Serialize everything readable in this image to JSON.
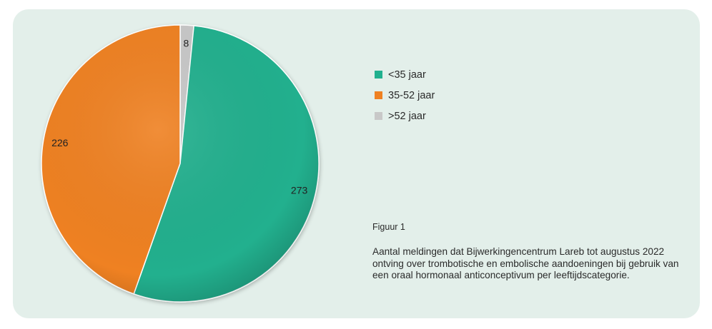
{
  "colors": {
    "card_bg": "#e3efea",
    "slice_1": "#20b08e",
    "slice_2": "#ef8122",
    "slice_3": "#c8c8c8"
  },
  "chart_data": {
    "type": "pie",
    "title": "",
    "categories": [
      "<35 jaar",
      "35-52 jaar",
      ">52 jaar"
    ],
    "values": [
      273,
      226,
      8
    ],
    "value_labels": [
      "273",
      "226",
      "8"
    ],
    "legend_placement": "right"
  },
  "legend": {
    "items": [
      {
        "label": "<35 jaar",
        "color": "#20b08e"
      },
      {
        "label": "35-52 jaar",
        "color": "#ef8122"
      },
      {
        "label": ">52 jaar",
        "color": "#c8c8c8"
      }
    ]
  },
  "figure": {
    "label": "Figuur 1",
    "caption": "Aantal meldingen dat Bijwerkingencentrum Lareb tot augustus 2022 ontving over trombotische en embolische aandoeningen bij gebruik van een oraal hormonaal anticonceptivum per leeftijdscategorie."
  }
}
